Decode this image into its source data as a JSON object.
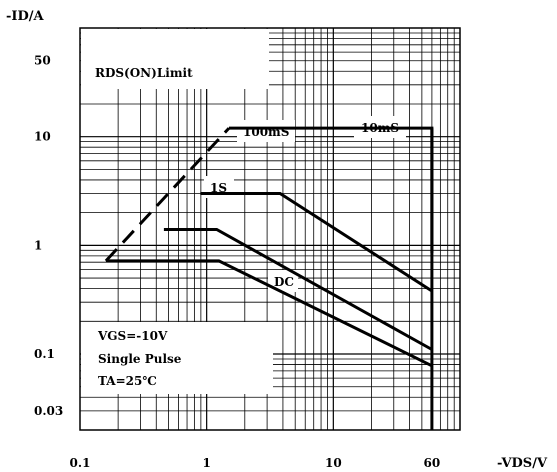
{
  "chart_data": {
    "type": "line",
    "title": "",
    "ylabel": "-ID/A",
    "xlabel": "-VDS/V",
    "x_scale": "log",
    "y_scale": "log",
    "xlim": [
      0.1,
      100
    ],
    "ylim": [
      0.02,
      100
    ],
    "x_tick_labels": [
      "0.1",
      "1",
      "10",
      "60"
    ],
    "x_ticks": [
      0.1,
      1,
      10,
      60
    ],
    "y_tick_labels": [
      "0.03",
      "0.1",
      "1",
      "10",
      "50"
    ],
    "y_ticks": [
      0.03,
      0.1,
      1,
      10,
      50
    ],
    "grid": true,
    "series": [
      {
        "name": "RDS(ON)Limit",
        "style": "dashed",
        "x": [
          0.16,
          1.5
        ],
        "y": [
          0.72,
          12
        ]
      },
      {
        "name": "10mS",
        "x": [
          1.5,
          60,
          60
        ],
        "y": [
          12,
          12,
          0.85
        ]
      },
      {
        "name": "100mS",
        "x": [
          0.89,
          3.8,
          60
        ],
        "y": [
          3.0,
          3.0,
          0.38
        ]
      },
      {
        "name": "1S",
        "x": [
          0.46,
          1.2,
          60
        ],
        "y": [
          1.4,
          1.4,
          0.11
        ]
      },
      {
        "name": "DC",
        "x": [
          0.16,
          1.25,
          60
        ],
        "y": [
          0.72,
          0.72,
          0.078
        ]
      },
      {
        "name": "",
        "x": [
          60,
          60
        ],
        "y": [
          12,
          0.02
        ]
      }
    ],
    "annotations": {
      "rds": "RDS(ON)Limit",
      "ms100": "100mS",
      "ms10": "10mS",
      "s1": "1S",
      "dc": "DC",
      "cond1": "VGS=-10V",
      "cond2": "Single Pulse",
      "cond3": "TA=25℃"
    }
  }
}
